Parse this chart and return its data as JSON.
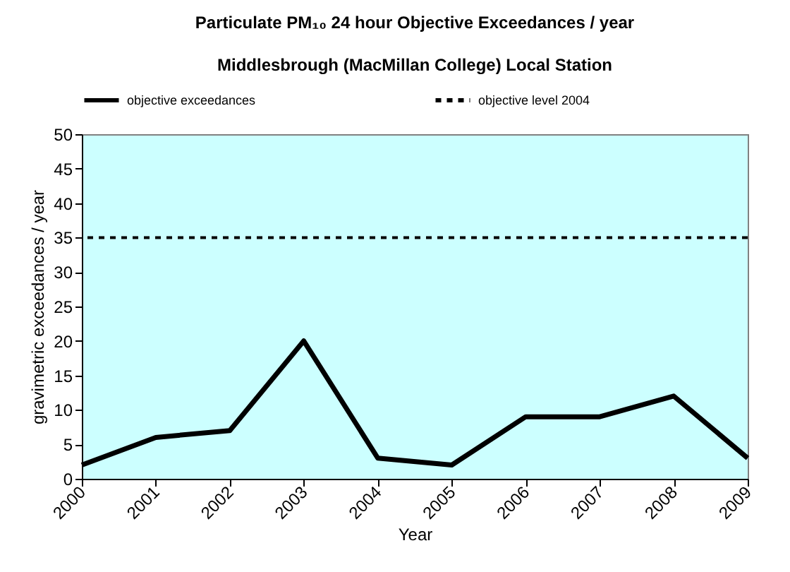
{
  "chart_data": {
    "type": "line",
    "title": "Particulate PM₁₀ 24 hour Objective Exceedances / year",
    "subtitle": "Middlesbrough (MacMillan College) Local Station",
    "xlabel": "Year",
    "ylabel": "gravimetric exceedances / year",
    "categories": [
      "2000",
      "2001",
      "2002",
      "2003",
      "2004",
      "2005",
      "2006",
      "2007",
      "2008",
      "2009"
    ],
    "series": [
      {
        "name": "objective exceedances",
        "color": "#000000",
        "values": [
          2,
          6,
          7,
          20,
          3,
          2,
          9,
          9,
          12,
          3
        ]
      }
    ],
    "ylim": [
      0,
      50
    ],
    "yticks": [
      0,
      5,
      10,
      15,
      20,
      25,
      30,
      35,
      40,
      45,
      50
    ],
    "ref_lines": [
      {
        "axis": "y",
        "value": 35,
        "label": "objective level 2004",
        "color": "#000000",
        "line_style": "dashed"
      }
    ],
    "grid": false,
    "legend": "top",
    "marker": "none",
    "line_style": "solid"
  }
}
